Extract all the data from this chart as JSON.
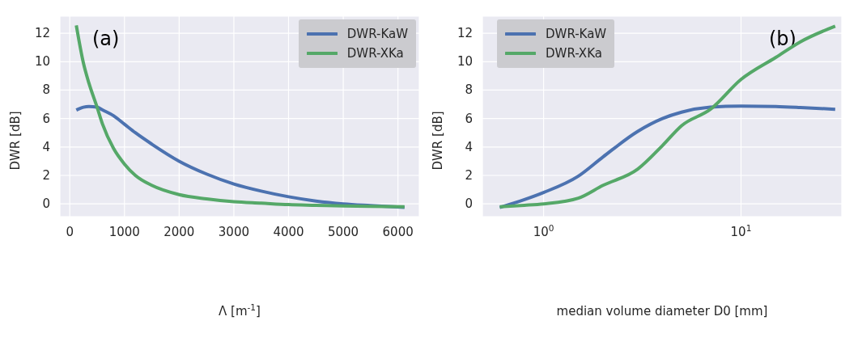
{
  "chart_data": [
    {
      "type": "line",
      "xlabel": "Λ [m$^{-1}$]",
      "ylabel": "DWR [dB]",
      "annotations": [
        "(a)"
      ],
      "legend": "top right",
      "grid": true,
      "xlim": [
        -180,
        6390
      ],
      "xticks": [
        0,
        1000,
        2000,
        3000,
        4000,
        5000,
        6000
      ],
      "ylim": [
        -0.9,
        13.2
      ],
      "yticks": [
        0,
        2,
        4,
        6,
        8,
        10,
        12
      ],
      "x": [
        120,
        250,
        350,
        500,
        600,
        800,
        1000,
        1200,
        1500,
        2000,
        2500,
        3000,
        3500,
        4000,
        4500,
        5000,
        5500,
        6120
      ],
      "series": [
        {
          "name": "DWR-KaW",
          "color": "#4c72b0",
          "values": [
            6.6,
            6.8,
            6.85,
            6.8,
            6.6,
            6.2,
            5.6,
            5.0,
            4.2,
            3.0,
            2.1,
            1.4,
            0.9,
            0.5,
            0.2,
            0.0,
            -0.12,
            -0.25
          ]
        },
        {
          "name": "DWR-XKa",
          "color": "#55a868",
          "values": [
            12.55,
            9.9,
            8.5,
            6.8,
            5.6,
            3.9,
            2.8,
            2.0,
            1.3,
            0.65,
            0.35,
            0.15,
            0.05,
            -0.05,
            -0.1,
            -0.15,
            -0.18,
            -0.2
          ]
        }
      ]
    },
    {
      "type": "line",
      "xlabel": "median volume diameter D0 [mm]",
      "ylabel": "DWR [dB]",
      "annotations": [
        "(b)"
      ],
      "legend": "top left",
      "grid": true,
      "log": "x",
      "xlim": [
        0.49,
        32.4
      ],
      "xticks": [
        {
          "value": 1,
          "label": "10$^{0}$"
        },
        {
          "value": 10,
          "label": "10$^{1}$"
        }
      ],
      "ylim": [
        -0.9,
        13.2
      ],
      "yticks": [
        0,
        2,
        4,
        6,
        8,
        10,
        12
      ],
      "x": [
        0.6,
        0.8,
        1,
        1.5,
        2,
        3,
        4,
        5,
        7,
        10,
        15,
        20,
        30
      ],
      "series": [
        {
          "name": "DWR-KaW",
          "color": "#4c72b0",
          "values": [
            -0.25,
            0.3,
            0.8,
            1.95,
            3.3,
            5.1,
            6.0,
            6.45,
            6.8,
            6.88,
            6.85,
            6.78,
            6.65
          ]
        },
        {
          "name": "DWR-XKa",
          "color": "#55a868",
          "values": [
            -0.2,
            -0.1,
            0.0,
            0.4,
            1.3,
            2.45,
            4.1,
            5.5,
            6.65,
            8.75,
            10.3,
            11.4,
            12.5
          ]
        }
      ]
    }
  ]
}
